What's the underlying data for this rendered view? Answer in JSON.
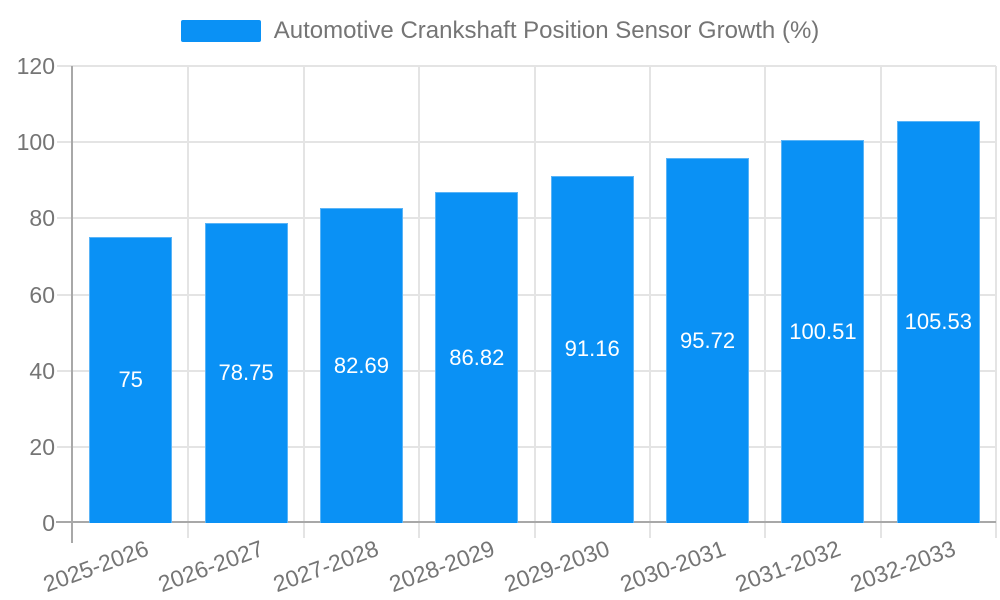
{
  "chart_data": {
    "type": "bar",
    "title": "Automotive Crankshaft Position Sensor Growth (%)",
    "categories": [
      "2025-2026",
      "2026-2027",
      "2027-2028",
      "2028-2029",
      "2029-2030",
      "2030-2031",
      "2031-2032",
      "2032-2033"
    ],
    "values": [
      75,
      78.75,
      82.69,
      86.82,
      91.16,
      95.72,
      100.51,
      105.53
    ],
    "value_labels": [
      "75",
      "78.75",
      "82.69",
      "86.82",
      "91.16",
      "95.72",
      "100.51",
      "105.53"
    ],
    "xlabel": "",
    "ylabel": "",
    "ylim": [
      0,
      120
    ],
    "yticks": [
      0,
      20,
      40,
      60,
      80,
      100,
      120
    ],
    "grid": true,
    "x_label_rotation_deg": -20,
    "legend": {
      "position": "top",
      "entries": [
        {
          "label": "Automotive Crankshaft Position Sensor Growth (%)",
          "color": "#0a91f5"
        }
      ]
    },
    "colors": {
      "bar_fill": "#0a91f5",
      "bar_border": "#5ab4f7",
      "bar_label_text": "#ffffff",
      "grid_line": "#e4e4e4",
      "axis_line": "#a8a8a8",
      "axis_text": "#757575",
      "legend_text": "#757575",
      "background": "#ffffff"
    }
  }
}
